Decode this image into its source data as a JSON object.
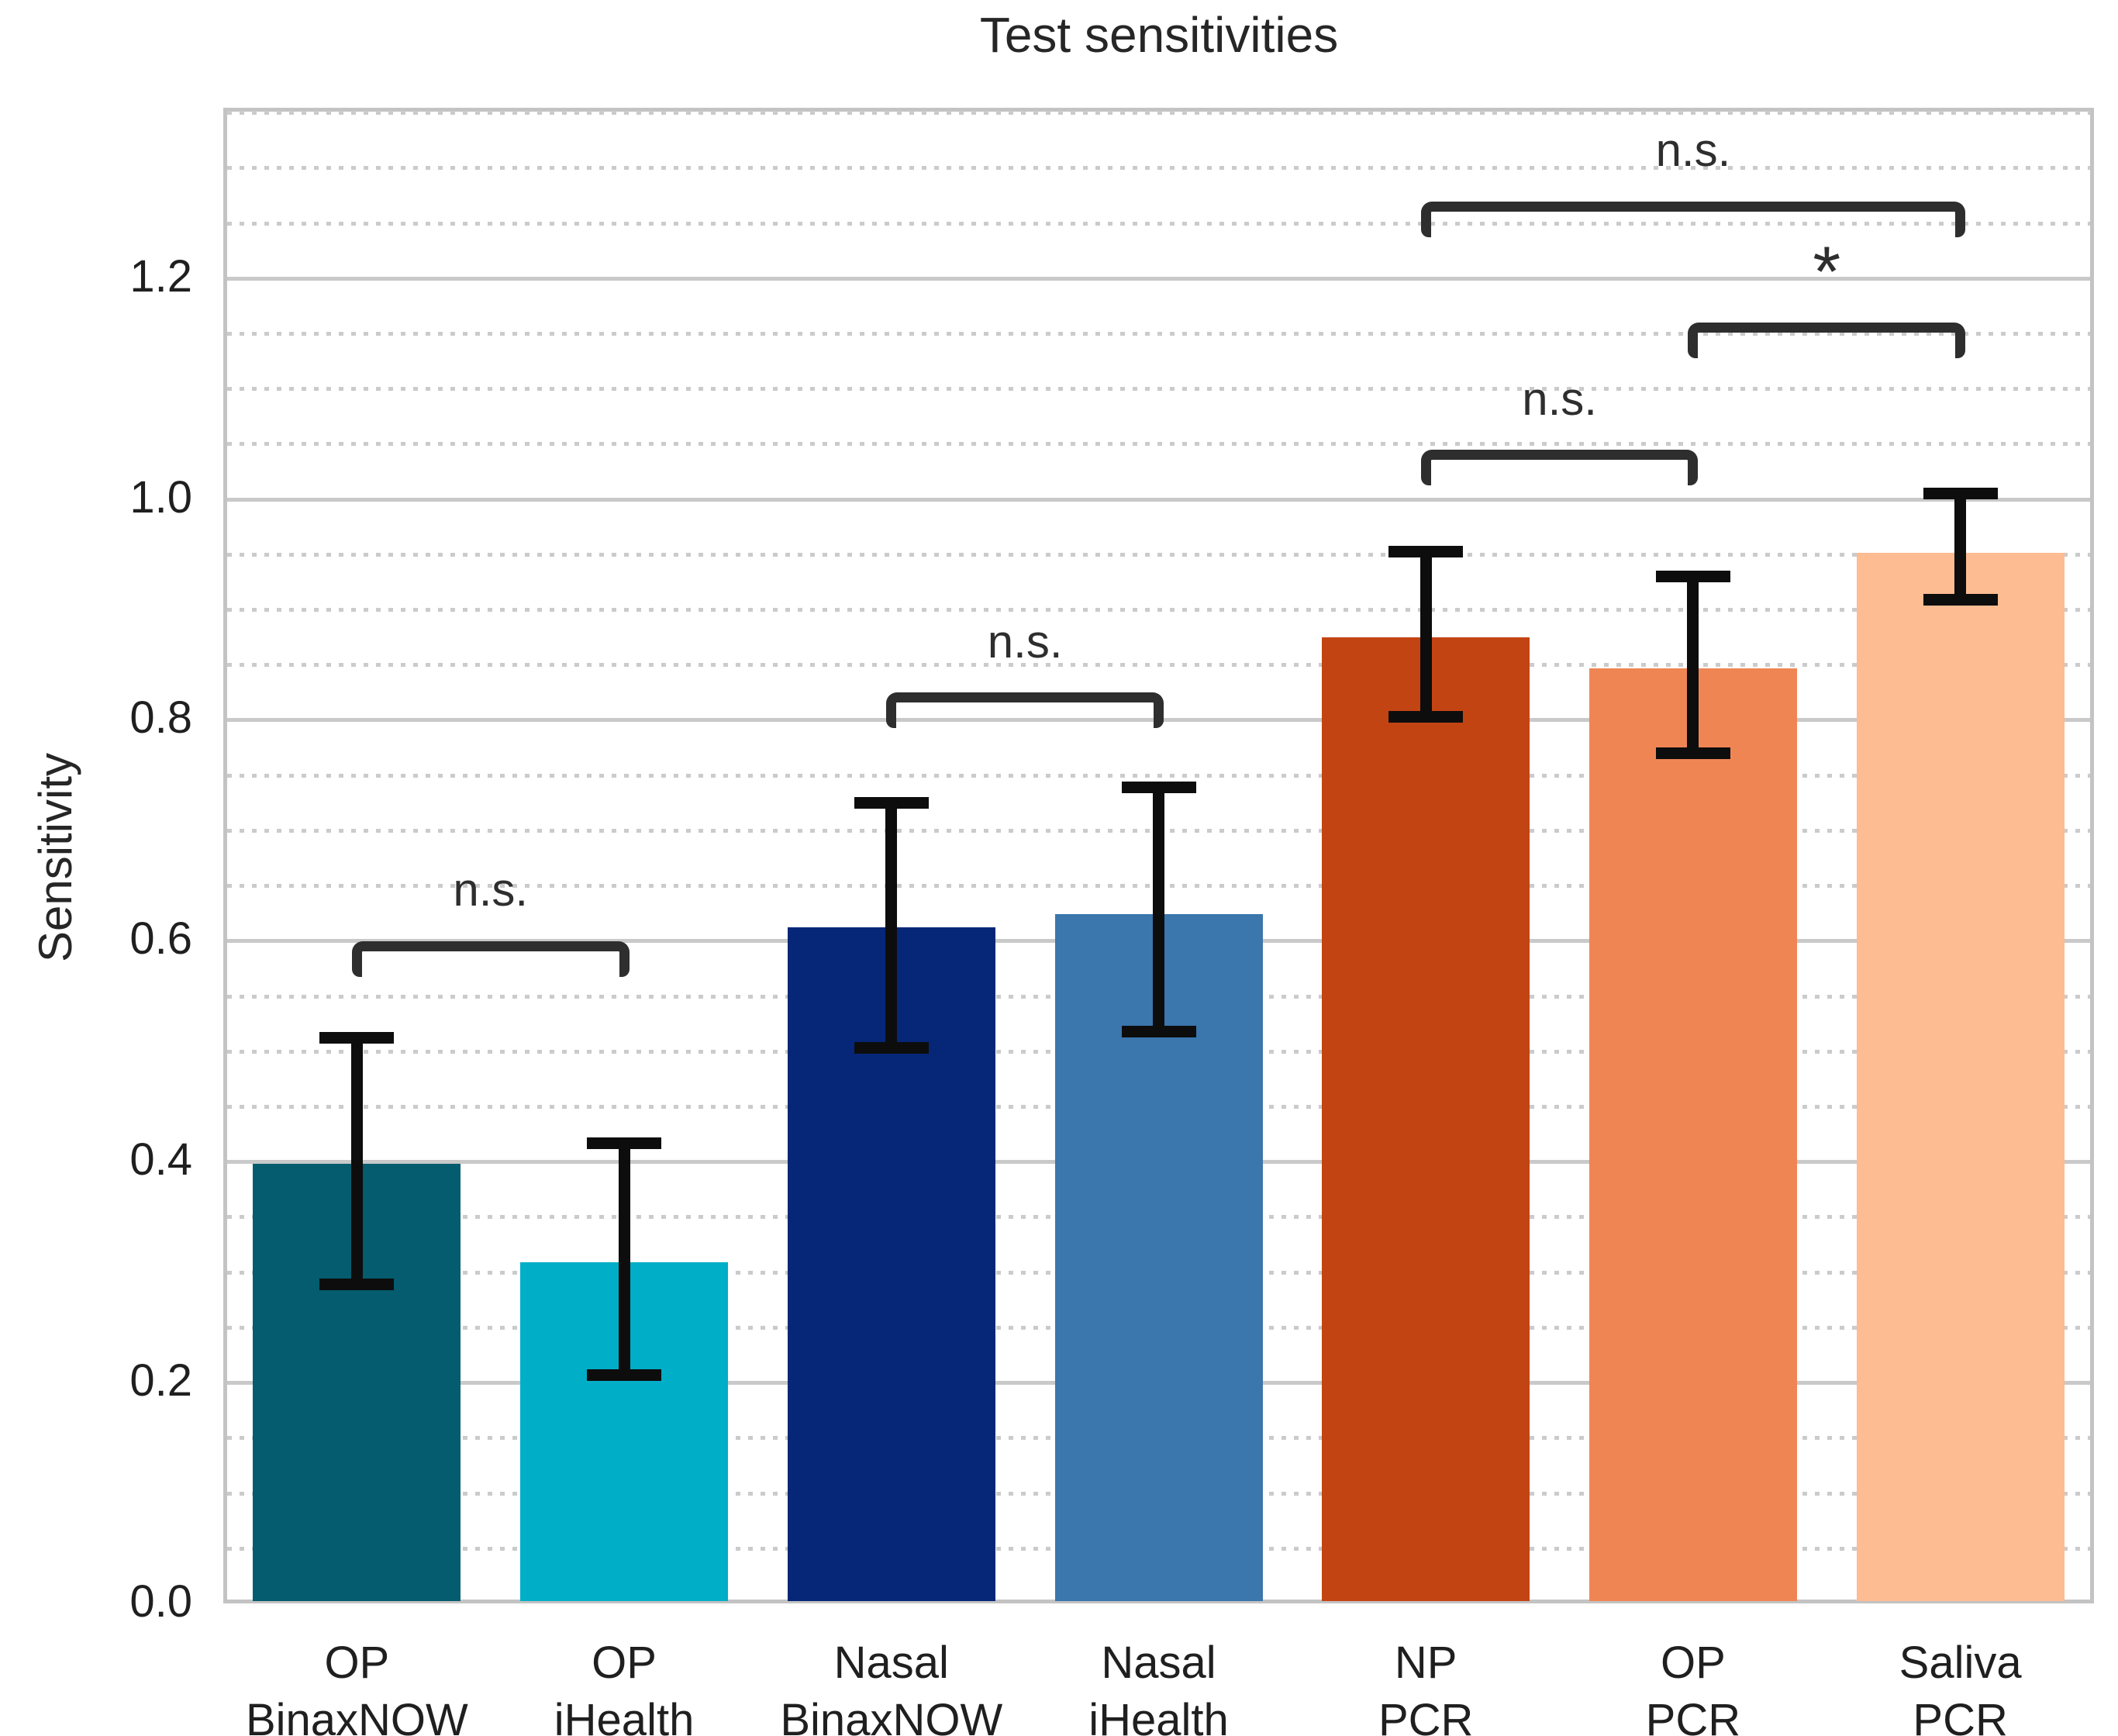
{
  "title": "Test sensitivities",
  "ylabel": "Sensitivity",
  "chart_data": {
    "type": "bar",
    "title": "Test sensitivities",
    "xlabel": "",
    "ylabel": "Sensitivity",
    "categories": [
      [
        "OP",
        "BinaxNOW"
      ],
      [
        "OP",
        "iHealth"
      ],
      [
        "Nasal",
        "BinaxNOW"
      ],
      [
        "Nasal",
        "iHealth"
      ],
      [
        "NP",
        "PCR"
      ],
      [
        "OP",
        "PCR"
      ],
      [
        "Saliva",
        "PCR"
      ]
    ],
    "values": [
      0.398,
      0.309,
      0.612,
      0.624,
      0.875,
      0.847,
      0.951
    ],
    "error_low": [
      0.289,
      0.207,
      0.503,
      0.518,
      0.803,
      0.77,
      0.909
    ],
    "error_high": [
      0.512,
      0.417,
      0.725,
      0.739,
      0.952,
      0.93,
      1.005
    ],
    "bar_colors": [
      "#045C6E",
      "#00AEC7",
      "#062777",
      "#3B76AD",
      "#C34413",
      "#F08554",
      "#FDBC92"
    ],
    "yticks": [
      "0.0",
      "0.2",
      "0.4",
      "0.6",
      "0.8",
      "1.0",
      "1.2"
    ],
    "ytick_values": [
      0.0,
      0.2,
      0.4,
      0.6,
      0.8,
      1.0,
      1.2
    ],
    "ylim": [
      0,
      1.354
    ],
    "minor_tick_step": 0.05,
    "grid": {
      "major": "solid",
      "minor": "dotted"
    },
    "legend": "none",
    "annotations": [
      {
        "label": "n.s.",
        "from": 0,
        "to": 1,
        "y": 0.595
      },
      {
        "label": "n.s.",
        "from": 2,
        "to": 3,
        "y": 0.82
      },
      {
        "label": "n.s.",
        "from": 4,
        "to": 5,
        "y": 1.04
      },
      {
        "label": "*",
        "from": 5,
        "to": 6,
        "y": 1.155
      },
      {
        "label": "n.s.",
        "from": 4,
        "to": 6,
        "y": 1.265
      }
    ],
    "error_bar_color": "#0d0d0d",
    "grid_color": "#c9c9c9",
    "frame_color": "#c3c3c3",
    "annotation_color": "#2e2e2e"
  }
}
